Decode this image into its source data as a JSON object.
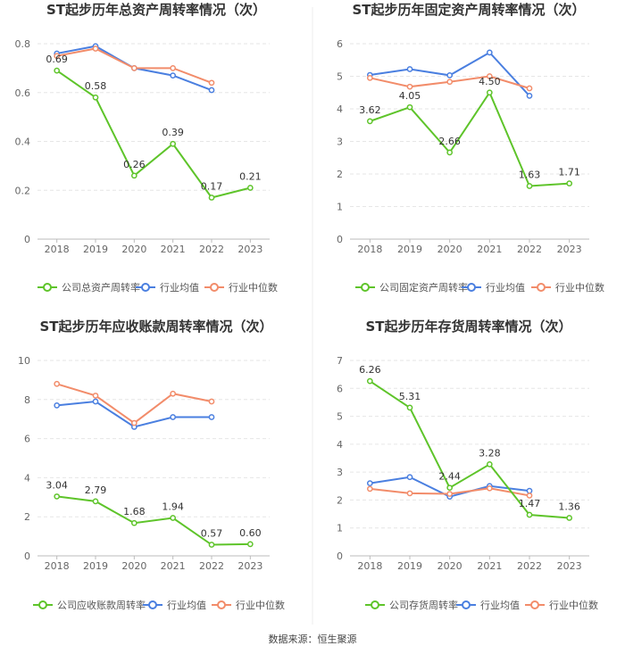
{
  "chart_data": [
    {
      "type": "line",
      "title": "ST起步历年总资产周转率情况（次）",
      "categories": [
        "2018",
        "2019",
        "2020",
        "2021",
        "2022",
        "2023"
      ],
      "ylim": [
        0,
        0.8
      ],
      "yticks": [
        "0",
        "0.2",
        "0.4",
        "0.6",
        "0.8"
      ],
      "series": [
        {
          "name": "公司总资产周转率",
          "color": "#5ec42a",
          "values": [
            0.69,
            0.58,
            0.26,
            0.39,
            0.17,
            0.21
          ],
          "labels": [
            "0.69",
            "0.58",
            "0.26",
            "0.39",
            "0.17",
            "0.21"
          ]
        },
        {
          "name": "行业均值",
          "color": "#4a7fe0",
          "values": [
            0.76,
            0.79,
            0.7,
            0.67,
            0.61,
            null
          ]
        },
        {
          "name": "行业中位数",
          "color": "#f28c6a",
          "values": [
            0.75,
            0.78,
            0.7,
            0.7,
            0.64,
            null
          ]
        }
      ]
    },
    {
      "type": "line",
      "title": "ST起步历年固定资产周转率情况（次）",
      "categories": [
        "2018",
        "2019",
        "2020",
        "2021",
        "2022",
        "2023"
      ],
      "ylim": [
        0,
        6
      ],
      "yticks": [
        "0",
        "1",
        "2",
        "3",
        "4",
        "5",
        "6"
      ],
      "series": [
        {
          "name": "公司固定资产周转率",
          "color": "#5ec42a",
          "values": [
            3.62,
            4.05,
            2.66,
            4.5,
            1.63,
            1.71
          ],
          "labels": [
            "3.62",
            "4.05",
            "2.66",
            "4.50",
            "1.63",
            "1.71"
          ]
        },
        {
          "name": "行业均值",
          "color": "#4a7fe0",
          "values": [
            5.04,
            5.22,
            5.03,
            5.73,
            4.4,
            null
          ]
        },
        {
          "name": "行业中位数",
          "color": "#f28c6a",
          "values": [
            4.95,
            4.68,
            4.83,
            5.0,
            4.63,
            null
          ]
        }
      ]
    },
    {
      "type": "line",
      "title": "ST起步历年应收账款周转率情况（次）",
      "categories": [
        "2018",
        "2019",
        "2020",
        "2021",
        "2022",
        "2023"
      ],
      "ylim": [
        0,
        10
      ],
      "yticks": [
        "0",
        "2",
        "4",
        "6",
        "8",
        "10"
      ],
      "series": [
        {
          "name": "公司应收账款周转率",
          "color": "#5ec42a",
          "values": [
            3.04,
            2.79,
            1.68,
            1.94,
            0.57,
            0.6
          ],
          "labels": [
            "3.04",
            "2.79",
            "1.68",
            "1.94",
            "0.57",
            "0.60"
          ]
        },
        {
          "name": "行业均值",
          "color": "#4a7fe0",
          "values": [
            7.7,
            7.9,
            6.6,
            7.1,
            7.1,
            null
          ]
        },
        {
          "name": "行业中位数",
          "color": "#f28c6a",
          "values": [
            8.8,
            8.2,
            6.8,
            8.3,
            7.9,
            null
          ]
        }
      ]
    },
    {
      "type": "line",
      "title": "ST起步历年存货周转率情况（次）",
      "categories": [
        "2018",
        "2019",
        "2020",
        "2021",
        "2022",
        "2023"
      ],
      "ylim": [
        0,
        7
      ],
      "yticks": [
        "0",
        "1",
        "2",
        "3",
        "4",
        "5",
        "6",
        "7"
      ],
      "series": [
        {
          "name": "公司存货周转率",
          "color": "#5ec42a",
          "values": [
            6.26,
            5.31,
            2.44,
            3.28,
            1.47,
            1.36
          ],
          "labels": [
            "6.26",
            "5.31",
            "2.44",
            "3.28",
            "1.47",
            "1.36"
          ]
        },
        {
          "name": "行业均值",
          "color": "#4a7fe0",
          "values": [
            2.6,
            2.82,
            2.12,
            2.5,
            2.33,
            null
          ]
        },
        {
          "name": "行业中位数",
          "color": "#f28c6a",
          "values": [
            2.4,
            2.24,
            2.22,
            2.42,
            2.16,
            null
          ]
        }
      ]
    }
  ],
  "source": "数据来源：恒生聚源"
}
